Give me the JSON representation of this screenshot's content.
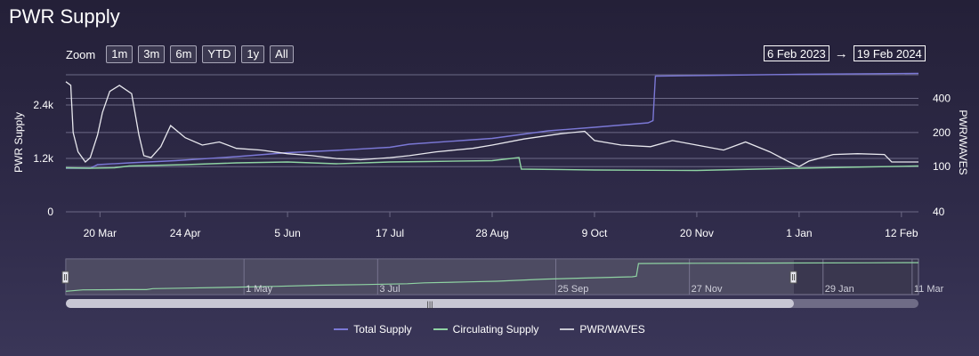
{
  "page": {
    "title": "PWR Supply"
  },
  "zoom": {
    "label": "Zoom",
    "buttons": [
      "1m",
      "3m",
      "6m",
      "YTD",
      "1y",
      "All"
    ]
  },
  "range": {
    "from": "6 Feb 2023",
    "arrow": "→",
    "to": "19 Feb 2024"
  },
  "navigator": {
    "ticks": [
      "1 May",
      "3 Jul",
      "25 Sep",
      "27 Nov",
      "29 Jan",
      "11 Mar"
    ]
  },
  "chart_data": {
    "type": "line",
    "title": "PWR Supply",
    "xlabel": "",
    "ylabel_left": "PWR Supply",
    "ylabel_right": "PWR/WAVES",
    "x_ticks": [
      "20 Mar",
      "24 Apr",
      "5 Jun",
      "17 Jul",
      "28 Aug",
      "9 Oct",
      "20 Nov",
      "1 Jan",
      "12 Feb"
    ],
    "y_left_ticks": [
      "0",
      "1.2k",
      "2.4k"
    ],
    "y_right_ticks": [
      "40",
      "100",
      "200",
      "400"
    ],
    "y_right_scale": "log",
    "xlim": [
      "2023-03-06",
      "2024-02-19"
    ],
    "ylim_left": [
      0,
      3000
    ],
    "ylim_right": [
      40,
      600
    ],
    "grid": true,
    "legend_position": "bottom",
    "colors": {
      "total": "#7b78d6",
      "circulating": "#8fd3a3",
      "pwr": "#e8e8ee",
      "grid": "#6d6a86"
    },
    "series": [
      {
        "name": "Total Supply",
        "axis": "left",
        "points": [
          [
            "2023-03-06",
            980
          ],
          [
            "2023-03-16",
            980
          ],
          [
            "2023-03-19",
            1060
          ],
          [
            "2023-04-01",
            1100
          ],
          [
            "2023-04-20",
            1150
          ],
          [
            "2023-05-15",
            1240
          ],
          [
            "2023-06-05",
            1330
          ],
          [
            "2023-06-25",
            1380
          ],
          [
            "2023-07-17",
            1450
          ],
          [
            "2023-07-25",
            1520
          ],
          [
            "2023-08-15",
            1600
          ],
          [
            "2023-08-28",
            1650
          ],
          [
            "2023-09-20",
            1820
          ],
          [
            "2023-10-09",
            1900
          ],
          [
            "2023-10-31",
            2000
          ],
          [
            "2023-11-02",
            2050
          ],
          [
            "2023-11-03",
            3050
          ],
          [
            "2023-12-01",
            3070
          ],
          [
            "2024-01-01",
            3090
          ],
          [
            "2024-02-19",
            3110
          ]
        ]
      },
      {
        "name": "Circulating Supply",
        "axis": "left",
        "points": [
          [
            "2023-03-06",
            990
          ],
          [
            "2023-03-16",
            980
          ],
          [
            "2023-03-26",
            990
          ],
          [
            "2023-04-01",
            1030
          ],
          [
            "2023-04-24",
            1060
          ],
          [
            "2023-05-15",
            1100
          ],
          [
            "2023-06-05",
            1120
          ],
          [
            "2023-06-25",
            1080
          ],
          [
            "2023-07-17",
            1120
          ],
          [
            "2023-08-01",
            1130
          ],
          [
            "2023-08-28",
            1150
          ],
          [
            "2023-09-08",
            1220
          ],
          [
            "2023-09-09",
            960
          ],
          [
            "2023-10-09",
            940
          ],
          [
            "2023-11-20",
            930
          ],
          [
            "2023-12-15",
            960
          ],
          [
            "2024-01-01",
            980
          ],
          [
            "2024-01-20",
            1000
          ],
          [
            "2024-02-19",
            1030
          ]
        ]
      },
      {
        "name": "PWR/WAVES",
        "axis": "right",
        "points": [
          [
            "2023-03-06",
            560
          ],
          [
            "2023-03-08",
            520
          ],
          [
            "2023-03-09",
            200
          ],
          [
            "2023-03-11",
            135
          ],
          [
            "2023-03-14",
            110
          ],
          [
            "2023-03-16",
            120
          ],
          [
            "2023-03-19",
            190
          ],
          [
            "2023-03-21",
            300
          ],
          [
            "2023-03-24",
            460
          ],
          [
            "2023-03-28",
            520
          ],
          [
            "2023-04-02",
            440
          ],
          [
            "2023-04-05",
            190
          ],
          [
            "2023-04-07",
            125
          ],
          [
            "2023-04-10",
            120
          ],
          [
            "2023-04-14",
            150
          ],
          [
            "2023-04-18",
            230
          ],
          [
            "2023-04-24",
            180
          ],
          [
            "2023-05-01",
            155
          ],
          [
            "2023-05-08",
            165
          ],
          [
            "2023-05-15",
            145
          ],
          [
            "2023-05-25",
            140
          ],
          [
            "2023-06-05",
            130
          ],
          [
            "2023-06-15",
            125
          ],
          [
            "2023-06-25",
            118
          ],
          [
            "2023-07-05",
            115
          ],
          [
            "2023-07-17",
            120
          ],
          [
            "2023-07-25",
            125
          ],
          [
            "2023-08-05",
            135
          ],
          [
            "2023-08-20",
            145
          ],
          [
            "2023-08-28",
            155
          ],
          [
            "2023-09-10",
            175
          ],
          [
            "2023-09-25",
            195
          ],
          [
            "2023-10-05",
            205
          ],
          [
            "2023-10-09",
            170
          ],
          [
            "2023-10-20",
            155
          ],
          [
            "2023-11-01",
            150
          ],
          [
            "2023-11-10",
            170
          ],
          [
            "2023-11-20",
            155
          ],
          [
            "2023-12-01",
            140
          ],
          [
            "2023-12-10",
            165
          ],
          [
            "2023-12-20",
            135
          ],
          [
            "2023-12-28",
            110
          ],
          [
            "2024-01-01",
            100
          ],
          [
            "2024-01-05",
            112
          ],
          [
            "2024-01-15",
            128
          ],
          [
            "2024-01-25",
            130
          ],
          [
            "2024-02-05",
            128
          ],
          [
            "2024-02-08",
            110
          ],
          [
            "2024-02-19",
            110
          ]
        ]
      }
    ]
  }
}
